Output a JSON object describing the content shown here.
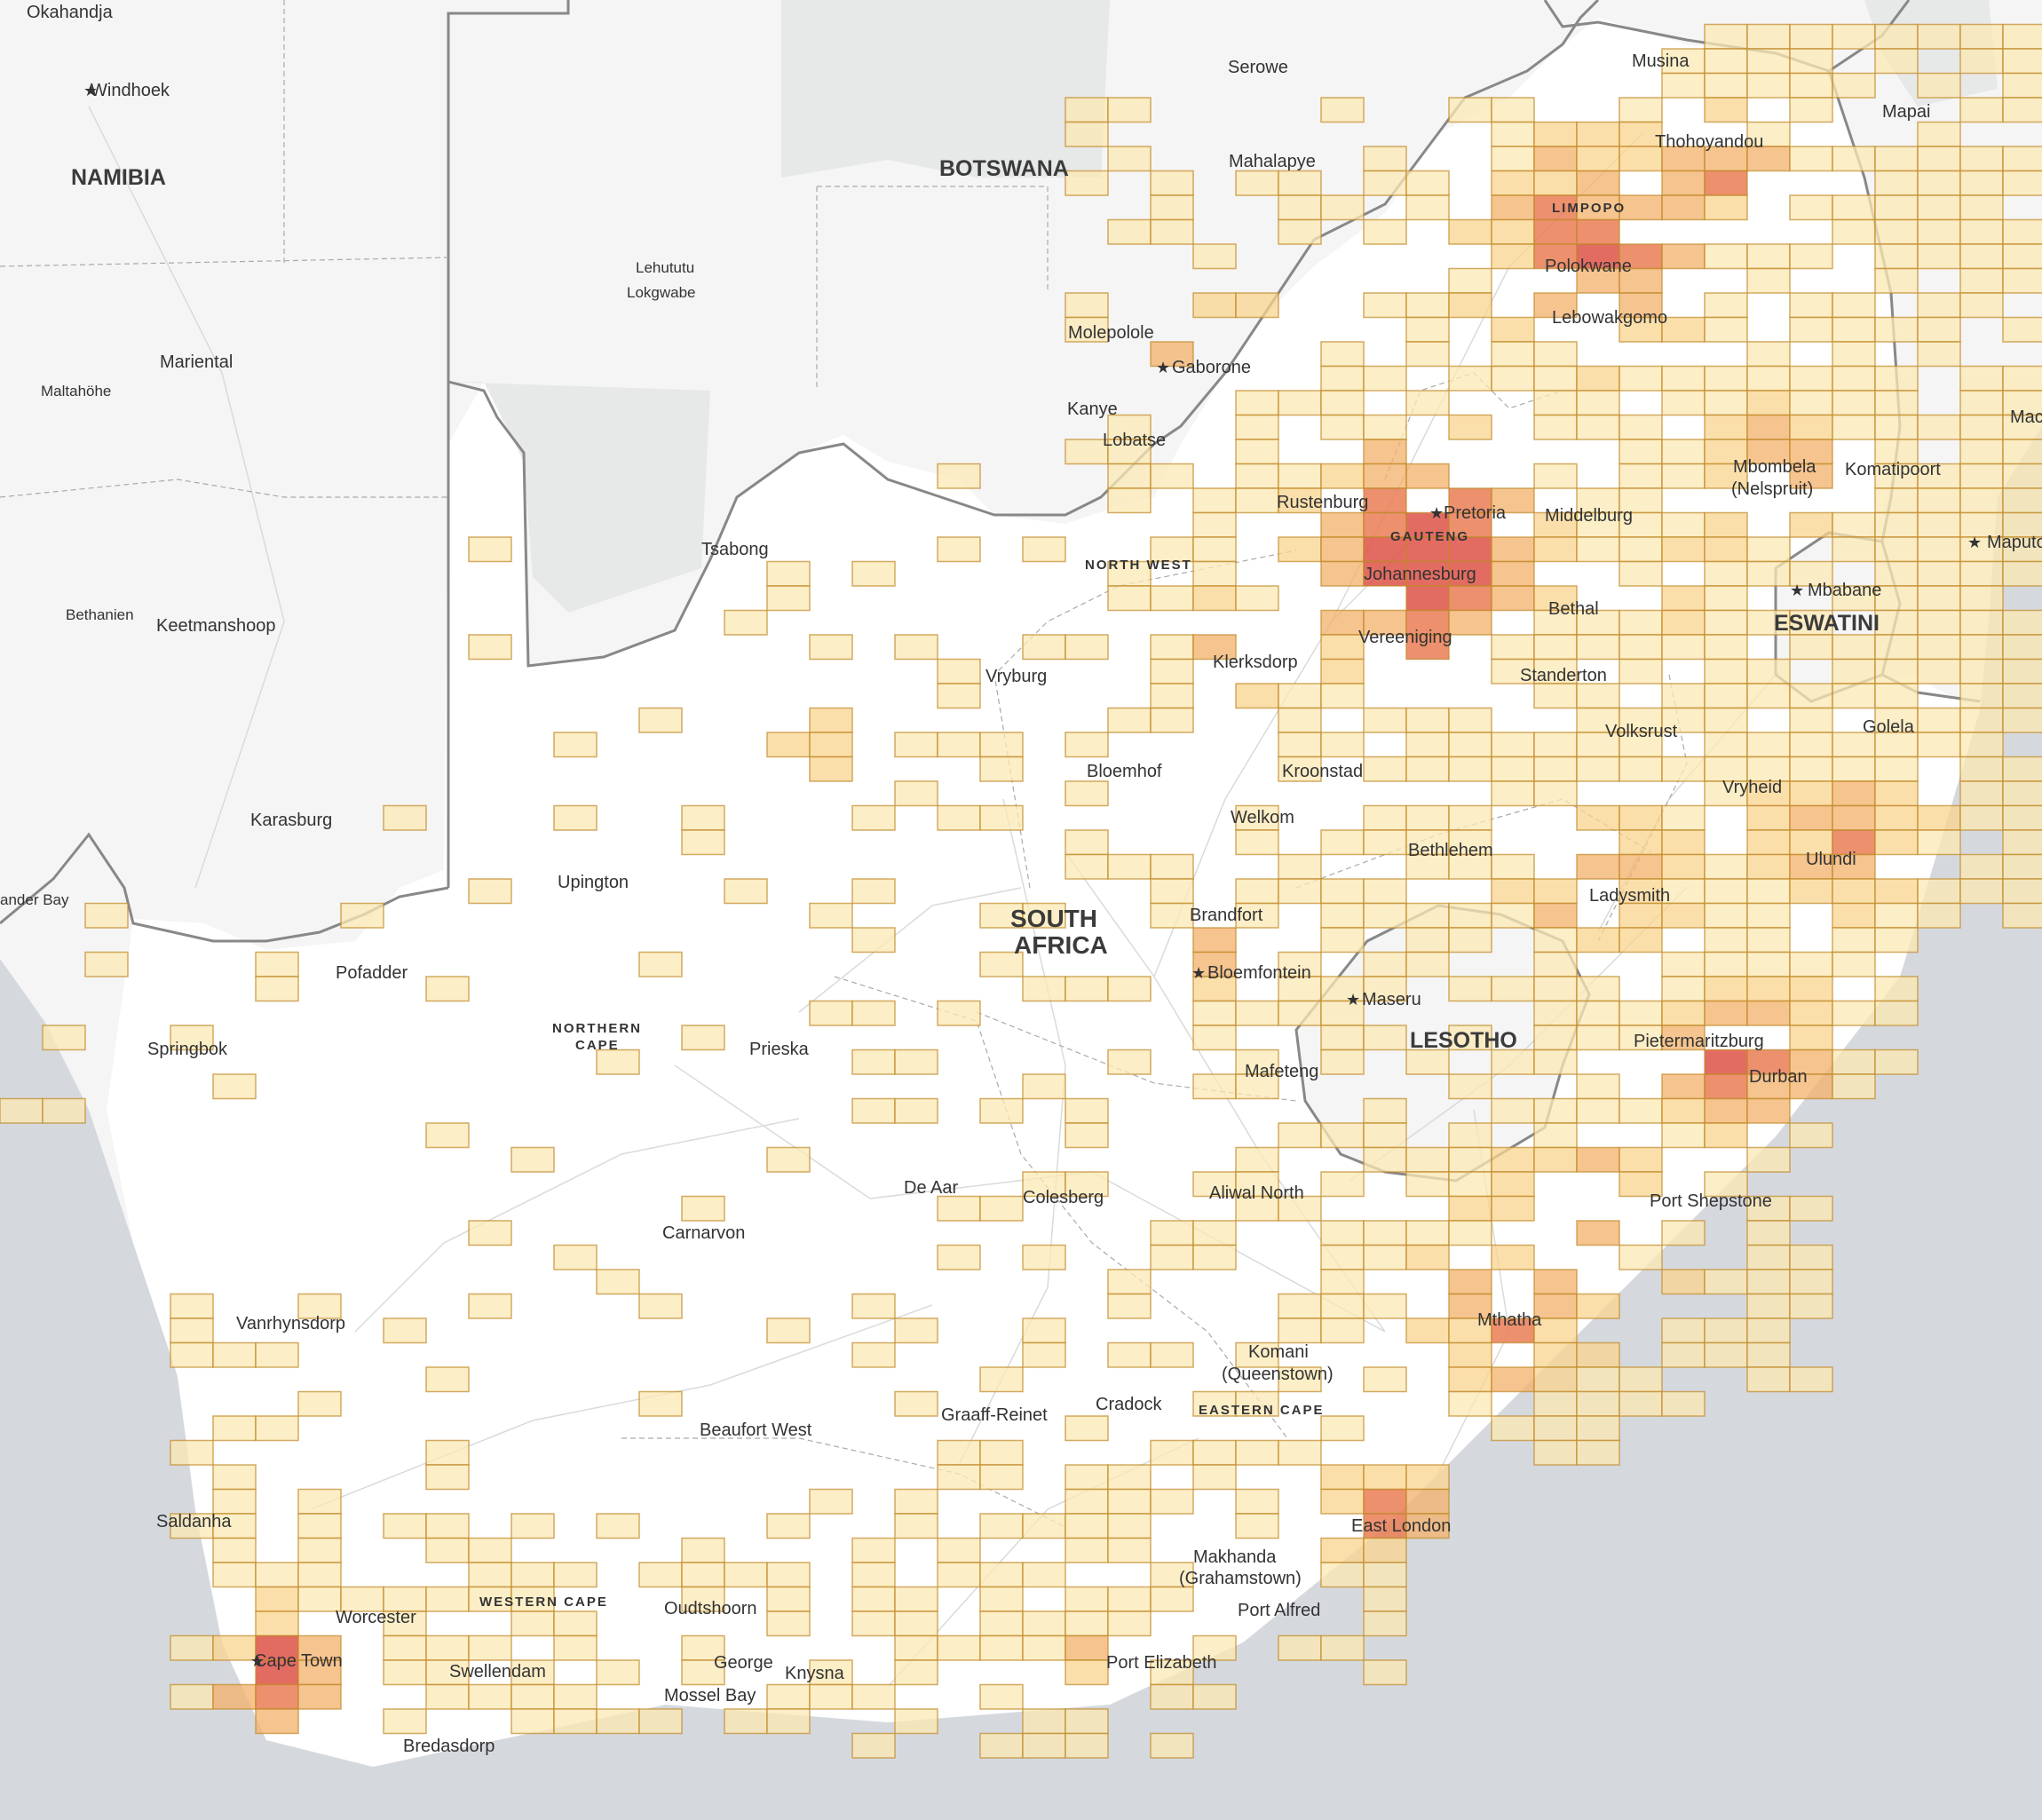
{
  "map": {
    "region": "Southern Africa",
    "countries": [
      "NAMIBIA",
      "BOTSWANA",
      "LESOTHO",
      "ESWATINI"
    ],
    "main_country": [
      "SOUTH",
      "AFRICA"
    ],
    "provinces": [
      "LIMPOPO",
      "GAUTENG",
      "NORTH WEST",
      "NORTHERN",
      "CAPE",
      "EASTERN CAPE",
      "WESTERN CAPE"
    ],
    "cities": [
      "Okahandja",
      "Windhoek",
      "Mariental",
      "Maltahöhe",
      "Bethanien",
      "Keetmanshoop",
      "Karasburg",
      "ander Bay",
      "Serowe",
      "Mahalapye",
      "Molepolole",
      "Gaborone",
      "Kanye",
      "Lobatse",
      "Lehututu",
      "Lokgwabe",
      "Tsabong",
      "Musina",
      "Thohoyandou",
      "Polokwane",
      "Lebowakgomo",
      "Mapai",
      "Mac",
      "Maputo",
      "Mbombela",
      "(Nelspruit)",
      "Komatipoort",
      "Mbabane",
      "Rustenburg",
      "Pretoria",
      "Johannesburg",
      "Middelburg",
      "Vereeniging",
      "Klerksdorp",
      "Bethal",
      "Standerton",
      "Vryburg",
      "Volksrust",
      "Golela",
      "Bloemhof",
      "Kroonstad",
      "Welkom",
      "Vryheid",
      "Ulundi",
      "Bethlehem",
      "Ladysmith",
      "Upington",
      "Brandfort",
      "Bloemfontein",
      "Maseru",
      "Pofadder",
      "Springbok",
      "Prieska",
      "Mafeteng",
      "Pietermaritzburg",
      "Durban",
      "De Aar",
      "Colesberg",
      "Aliwal North",
      "Carnarvon",
      "Port Shepstone",
      "Vanrhynsdorp",
      "Mthatha",
      "Komani",
      "(Queenstown)",
      "Cradock",
      "Beaufort West",
      "Graaff-Reinet",
      "Saldanha",
      "East London",
      "Makhanda",
      "(Grahamstown)",
      "Worcester",
      "Oudtshoorn",
      "Port Alfred",
      "Cape Town",
      "Swellendam",
      "George",
      "Knysna",
      "Mossel Bay",
      "Port Elizabeth",
      "Bredasdorp"
    ],
    "heat_colors": [
      "#fbe8b3",
      "#f9d48f",
      "#f3b06a",
      "#ea7d55",
      "#de5246"
    ]
  }
}
